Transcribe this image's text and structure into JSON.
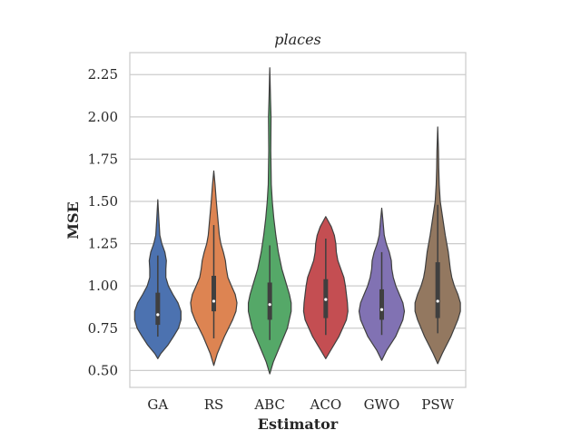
{
  "chart_data": {
    "type": "violin",
    "title": "places",
    "xlabel": "Estimator",
    "ylabel": "MSE",
    "ylim": [
      0.4,
      2.38
    ],
    "yticks": [
      0.5,
      0.75,
      1.0,
      1.25,
      1.5,
      1.75,
      2.0,
      2.25
    ],
    "ytick_labels": [
      "0.50",
      "0.75",
      "1.00",
      "1.25",
      "1.50",
      "1.75",
      "2.00",
      "2.25"
    ],
    "grid": true,
    "categories": [
      "GA",
      "RS",
      "ABC",
      "ACO",
      "GWO",
      "PSW"
    ],
    "series": [
      {
        "category": "GA",
        "color": "#4c72b0",
        "min": 0.57,
        "max": 1.51,
        "q1": 0.77,
        "median": 0.83,
        "q3": 0.96,
        "whisker_low": 0.7,
        "whisker_high": 1.18,
        "profile": [
          [
            0.57,
            0.0
          ],
          [
            0.6,
            0.12
          ],
          [
            0.65,
            0.4
          ],
          [
            0.7,
            0.62
          ],
          [
            0.75,
            0.82
          ],
          [
            0.8,
            0.92
          ],
          [
            0.85,
            0.92
          ],
          [
            0.9,
            0.8
          ],
          [
            0.95,
            0.6
          ],
          [
            1.0,
            0.42
          ],
          [
            1.05,
            0.32
          ],
          [
            1.1,
            0.32
          ],
          [
            1.15,
            0.34
          ],
          [
            1.2,
            0.28
          ],
          [
            1.25,
            0.16
          ],
          [
            1.3,
            0.08
          ],
          [
            1.4,
            0.04
          ],
          [
            1.51,
            0.0
          ]
        ]
      },
      {
        "category": "RS",
        "color": "#dd8452",
        "min": 0.53,
        "max": 1.68,
        "q1": 0.85,
        "median": 0.91,
        "q3": 1.06,
        "whisker_low": 0.69,
        "whisker_high": 1.36,
        "profile": [
          [
            0.53,
            0.0
          ],
          [
            0.6,
            0.14
          ],
          [
            0.7,
            0.42
          ],
          [
            0.8,
            0.75
          ],
          [
            0.85,
            0.88
          ],
          [
            0.9,
            0.92
          ],
          [
            0.95,
            0.85
          ],
          [
            1.0,
            0.7
          ],
          [
            1.05,
            0.56
          ],
          [
            1.1,
            0.5
          ],
          [
            1.15,
            0.46
          ],
          [
            1.2,
            0.38
          ],
          [
            1.25,
            0.28
          ],
          [
            1.3,
            0.22
          ],
          [
            1.4,
            0.16
          ],
          [
            1.5,
            0.1
          ],
          [
            1.6,
            0.05
          ],
          [
            1.68,
            0.0
          ]
        ]
      },
      {
        "category": "ABC",
        "color": "#55a868",
        "min": 0.48,
        "max": 2.29,
        "q1": 0.8,
        "median": 0.89,
        "q3": 1.02,
        "whisker_low": 0.68,
        "whisker_high": 1.24,
        "profile": [
          [
            0.48,
            0.0
          ],
          [
            0.55,
            0.14
          ],
          [
            0.65,
            0.42
          ],
          [
            0.75,
            0.7
          ],
          [
            0.85,
            0.85
          ],
          [
            0.9,
            0.85
          ],
          [
            0.95,
            0.78
          ],
          [
            1.0,
            0.68
          ],
          [
            1.1,
            0.48
          ],
          [
            1.2,
            0.34
          ],
          [
            1.3,
            0.24
          ],
          [
            1.4,
            0.16
          ],
          [
            1.5,
            0.1
          ],
          [
            1.6,
            0.06
          ],
          [
            1.8,
            0.04
          ],
          [
            2.0,
            0.05
          ],
          [
            2.1,
            0.03
          ],
          [
            2.29,
            0.0
          ]
        ]
      },
      {
        "category": "ACO",
        "color": "#c44e52",
        "min": 0.57,
        "max": 1.41,
        "q1": 0.81,
        "median": 0.92,
        "q3": 1.04,
        "whisker_low": 0.71,
        "whisker_high": 1.28,
        "profile": [
          [
            0.57,
            0.0
          ],
          [
            0.62,
            0.2
          ],
          [
            0.7,
            0.52
          ],
          [
            0.8,
            0.82
          ],
          [
            0.85,
            0.88
          ],
          [
            0.9,
            0.86
          ],
          [
            0.95,
            0.82
          ],
          [
            1.0,
            0.78
          ],
          [
            1.05,
            0.72
          ],
          [
            1.1,
            0.6
          ],
          [
            1.15,
            0.48
          ],
          [
            1.2,
            0.42
          ],
          [
            1.25,
            0.4
          ],
          [
            1.3,
            0.34
          ],
          [
            1.35,
            0.22
          ],
          [
            1.41,
            0.0
          ]
        ]
      },
      {
        "category": "GWO",
        "color": "#8172b3",
        "min": 0.56,
        "max": 1.46,
        "q1": 0.8,
        "median": 0.86,
        "q3": 0.98,
        "whisker_low": 0.71,
        "whisker_high": 1.2,
        "profile": [
          [
            0.56,
            0.0
          ],
          [
            0.62,
            0.2
          ],
          [
            0.7,
            0.55
          ],
          [
            0.8,
            0.84
          ],
          [
            0.85,
            0.9
          ],
          [
            0.9,
            0.84
          ],
          [
            0.95,
            0.7
          ],
          [
            1.0,
            0.56
          ],
          [
            1.05,
            0.46
          ],
          [
            1.1,
            0.4
          ],
          [
            1.15,
            0.38
          ],
          [
            1.2,
            0.3
          ],
          [
            1.25,
            0.18
          ],
          [
            1.3,
            0.1
          ],
          [
            1.4,
            0.04
          ],
          [
            1.46,
            0.0
          ]
        ]
      },
      {
        "category": "PSW",
        "color": "#937860",
        "min": 0.54,
        "max": 1.94,
        "q1": 0.81,
        "median": 0.91,
        "q3": 1.14,
        "whisker_low": 0.72,
        "whisker_high": 1.48,
        "profile": [
          [
            0.54,
            0.0
          ],
          [
            0.6,
            0.18
          ],
          [
            0.7,
            0.52
          ],
          [
            0.8,
            0.8
          ],
          [
            0.85,
            0.9
          ],
          [
            0.9,
            0.9
          ],
          [
            0.95,
            0.8
          ],
          [
            1.0,
            0.66
          ],
          [
            1.05,
            0.56
          ],
          [
            1.1,
            0.5
          ],
          [
            1.2,
            0.42
          ],
          [
            1.3,
            0.3
          ],
          [
            1.4,
            0.2
          ],
          [
            1.5,
            0.1
          ],
          [
            1.6,
            0.06
          ],
          [
            1.7,
            0.04
          ],
          [
            1.8,
            0.03
          ],
          [
            1.94,
            0.0
          ]
        ]
      }
    ]
  }
}
